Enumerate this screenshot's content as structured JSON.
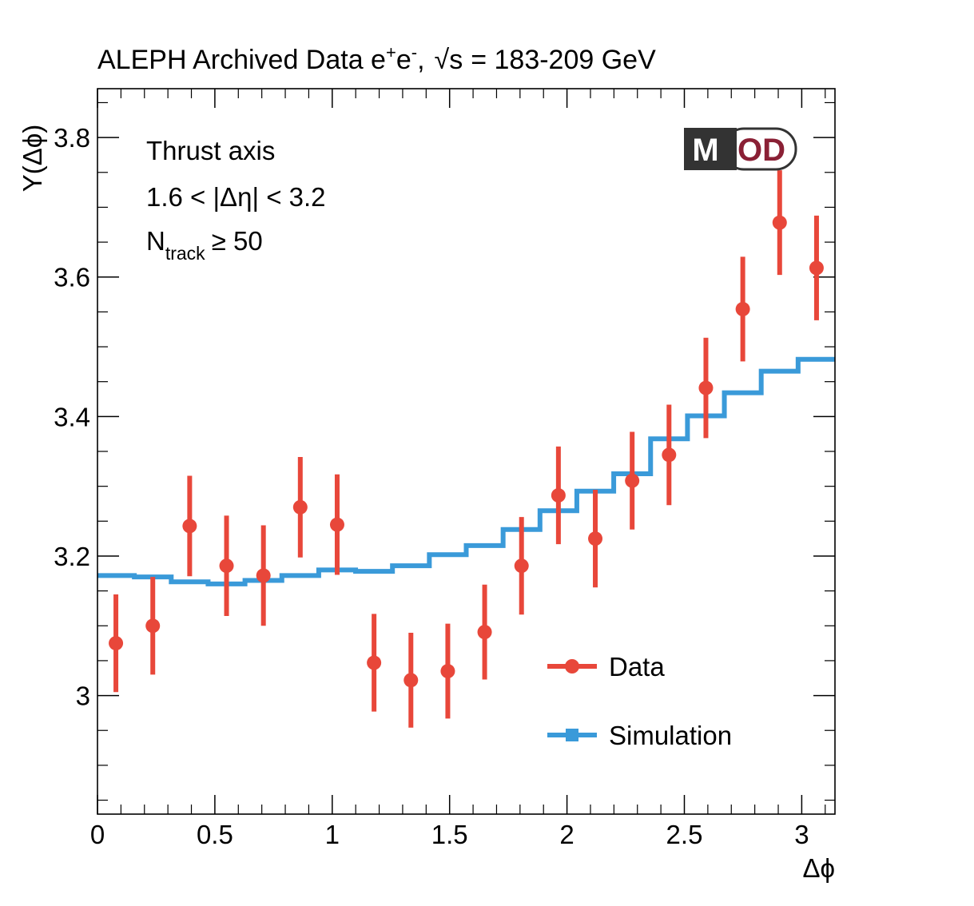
{
  "chart_data": {
    "type": "scatter",
    "title": {
      "main": "ALEPH Archived Data e",
      "sup_plus": "+",
      "e": "e",
      "sup_minus": "-",
      "sep": ",",
      "sqrt": "√s",
      "energy": "= 183-209 GeV"
    },
    "xlabel": "Δϕ",
    "ylabel": "Y(Δϕ)",
    "xlim": [
      0,
      3.1416
    ],
    "ylim": [
      2.83,
      3.87
    ],
    "x_ticks": [
      {
        "v": 0,
        "label": "0"
      },
      {
        "v": 0.5,
        "label": "0.5"
      },
      {
        "v": 1,
        "label": "1"
      },
      {
        "v": 1.5,
        "label": "1.5"
      },
      {
        "v": 2,
        "label": "2"
      },
      {
        "v": 2.5,
        "label": "2.5"
      },
      {
        "v": 3,
        "label": "3"
      }
    ],
    "y_ticks": [
      {
        "v": 3.0,
        "label": "3"
      },
      {
        "v": 3.2,
        "label": "3.2"
      },
      {
        "v": 3.4,
        "label": "3.4"
      },
      {
        "v": 3.6,
        "label": "3.6"
      },
      {
        "v": 3.8,
        "label": "3.8"
      }
    ],
    "annotations": {
      "line1": "Thrust axis",
      "line2": "1.6 < |Δη| < 3.2",
      "line3_main": "N",
      "line3_sub": "track",
      "line3_rest": "≥ 50"
    },
    "logo": {
      "m": "M",
      "od": "OD"
    },
    "legend": {
      "data": "Data",
      "simulation": "Simulation",
      "position": "bottom-right"
    },
    "colors": {
      "data": "#e8473a",
      "simulation": "#3a9ad9",
      "logo_dark": "#333333",
      "logo_red": "#8a2035"
    },
    "series": [
      {
        "name": "Data",
        "x": [
          0.0785,
          0.2356,
          0.3927,
          0.5498,
          0.7069,
          0.8639,
          1.021,
          1.1781,
          1.3352,
          1.4923,
          1.6493,
          1.8064,
          1.9635,
          2.1206,
          2.2777,
          2.4347,
          2.5918,
          2.7489,
          2.906,
          3.0631
        ],
        "y": [
          3.075,
          3.1,
          3.243,
          3.186,
          3.172,
          3.27,
          3.245,
          3.047,
          3.022,
          3.035,
          3.091,
          3.186,
          3.287,
          3.225,
          3.308,
          3.345,
          3.441,
          3.554,
          3.678,
          3.613
        ],
        "err": [
          0.07,
          0.07,
          0.072,
          0.072,
          0.072,
          0.072,
          0.072,
          0.07,
          0.068,
          0.068,
          0.068,
          0.07,
          0.07,
          0.07,
          0.07,
          0.072,
          0.072,
          0.075,
          0.075,
          0.075
        ]
      },
      {
        "name": "Simulation",
        "bin_edges": [
          0,
          0.1571,
          0.3142,
          0.4712,
          0.6283,
          0.7854,
          0.9425,
          1.0996,
          1.2566,
          1.4137,
          1.5708,
          1.7279,
          1.885,
          2.042,
          2.1991,
          2.3562,
          2.5133,
          2.6704,
          2.8274,
          2.9845,
          3.1416
        ],
        "values": [
          3.172,
          3.17,
          3.163,
          3.16,
          3.165,
          3.172,
          3.18,
          3.178,
          3.186,
          3.202,
          3.215,
          3.238,
          3.265,
          3.293,
          3.318,
          3.368,
          3.401,
          3.434,
          3.465,
          3.482
        ]
      }
    ]
  }
}
